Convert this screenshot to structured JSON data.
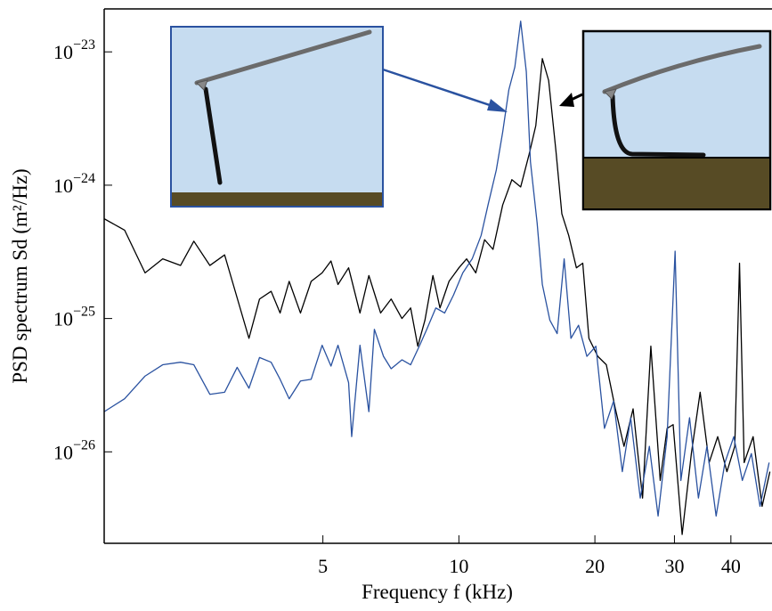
{
  "chart_data": {
    "type": "line",
    "xscale": "log",
    "yscale": "log",
    "x_label": "Frequency f (kHz)",
    "y_label": "PSD spectrum Sd (m²/Hz)",
    "xlim": [
      1.64,
      49.1
    ],
    "ylim": [
      2.06e-27,
      2.1e-23
    ],
    "xticks": [
      5,
      10,
      20,
      30,
      40
    ],
    "yticks": [
      {
        "value": 1e-23,
        "label": "10−23"
      },
      {
        "value": 1e-24,
        "label": "10−24"
      },
      {
        "value": 1e-25,
        "label": "10−25"
      },
      {
        "value": 1e-26,
        "label": "10−26"
      }
    ],
    "series": [
      {
        "color": "#000000",
        "x": [
          1.64,
          1.82,
          2.02,
          2.21,
          2.42,
          2.59,
          2.81,
          3.03,
          3.43,
          3.62,
          3.84,
          4.02,
          4.21,
          4.46,
          4.71,
          4.98,
          5.21,
          5.4,
          5.7,
          6.04,
          6.32,
          6.71,
          7.08,
          7.48,
          7.82,
          8.11,
          8.41,
          8.76,
          9.08,
          9.51,
          10,
          10.4,
          10.9,
          11.4,
          11.9,
          12.5,
          13.1,
          13.7,
          14.3,
          14.8,
          15.3,
          15.8,
          16.4,
          16.9,
          17.5,
          18.2,
          18.8,
          19.4,
          20.3,
          21.2,
          22.2,
          23.2,
          24.3,
          25.5,
          26.6,
          27.9,
          28.9,
          29.8,
          31.2,
          32.7,
          34.2,
          35.8,
          37.4,
          39.2,
          40.8,
          41.8,
          42.8,
          44.8,
          46.9,
          48.8
        ],
        "values": [
          5.6e-25,
          4.6e-25,
          2.2e-25,
          2.8e-25,
          2.5e-25,
          3.8e-25,
          2.5e-25,
          3e-25,
          7.1e-26,
          1.4e-25,
          1.6e-25,
          1.1e-25,
          1.9e-25,
          1.1e-25,
          1.9e-25,
          2.2e-25,
          2.7e-25,
          1.8e-25,
          2.4e-25,
          1.1e-25,
          2.1e-25,
          1.1e-25,
          1.4e-25,
          1e-25,
          1.2e-25,
          6.2e-26,
          9.7e-26,
          2.1e-25,
          1.2e-25,
          1.9e-25,
          2.4e-25,
          2.8e-25,
          2.2e-25,
          3.9e-25,
          3.3e-25,
          7.1e-25,
          1.1e-24,
          9.7e-25,
          1.7e-24,
          2.8e-24,
          8.9e-24,
          6.1e-24,
          1.8e-24,
          6.1e-25,
          4.2e-25,
          2.4e-25,
          2.6e-25,
          7.1e-26,
          5.2e-26,
          4.5e-26,
          2.1e-26,
          1.1e-26,
          2.1e-26,
          4.5e-27,
          6.2e-26,
          6.1e-27,
          1.5e-26,
          1.6e-26,
          2.4e-27,
          9.7e-27,
          2.8e-26,
          8.3e-27,
          1.3e-26,
          7.1e-27,
          1.1e-26,
          2.6e-25,
          8.3e-27,
          1.3e-26,
          3.9e-27,
          7.1e-27
        ]
      },
      {
        "color": "#2a52a0",
        "x": [
          1.64,
          1.82,
          2.02,
          2.21,
          2.42,
          2.59,
          2.81,
          3.03,
          3.23,
          3.43,
          3.62,
          3.84,
          4.02,
          4.21,
          4.46,
          4.71,
          4.98,
          5.21,
          5.4,
          5.7,
          5.79,
          6.04,
          6.32,
          6.5,
          6.81,
          7.08,
          7.48,
          7.82,
          8.19,
          8.49,
          8.89,
          9.3,
          9.73,
          10.2,
          10.7,
          11.2,
          11.6,
          12.1,
          12.5,
          12.9,
          13.3,
          13.7,
          14.1,
          14.4,
          14.9,
          15.3,
          15.9,
          16.5,
          17.1,
          17.7,
          18.4,
          19.2,
          20.1,
          21.0,
          22.0,
          23.0,
          24.0,
          25.2,
          26.4,
          27.6,
          28.9,
          30.1,
          31.0,
          32.4,
          33.9,
          35.4,
          37.1,
          38.8,
          40.6,
          42.4,
          44.4,
          46.4,
          48.6
        ],
        "values": [
          2e-26,
          2.5e-26,
          3.7e-26,
          4.5e-26,
          4.7e-26,
          4.5e-26,
          2.7e-26,
          2.8e-26,
          4.3e-26,
          3e-26,
          5.1e-26,
          4.7e-26,
          3.5e-26,
          2.5e-26,
          3.4e-26,
          3.5e-26,
          6.3e-26,
          4.4e-26,
          6.3e-26,
          3.3e-26,
          1.3e-26,
          6.3e-26,
          2e-26,
          8.3e-26,
          5.2e-26,
          4.2e-26,
          4.9e-26,
          4.5e-26,
          6.3e-26,
          8.3e-26,
          1.2e-25,
          1.1e-25,
          1.5e-25,
          2.2e-25,
          2.8e-25,
          4.2e-25,
          7.1e-25,
          1.3e-24,
          2.5e-24,
          5.2e-24,
          7.7e-24,
          1.7e-23,
          7.1e-24,
          1.5e-24,
          5.2e-25,
          1.8e-25,
          9.7e-26,
          7.7e-26,
          2.8e-25,
          7.1e-26,
          8.9e-26,
          5.2e-26,
          6.2e-26,
          1.5e-26,
          2.4e-26,
          7.1e-27,
          1.8e-26,
          4.5e-27,
          1.1e-26,
          3.3e-27,
          1.3e-26,
          3.2e-25,
          6.1e-27,
          1.8e-26,
          4.5e-27,
          1.1e-26,
          3.3e-27,
          8.3e-27,
          1.3e-26,
          6.1e-27,
          9.7e-27,
          3.9e-27,
          8.3e-27
        ]
      }
    ]
  }
}
